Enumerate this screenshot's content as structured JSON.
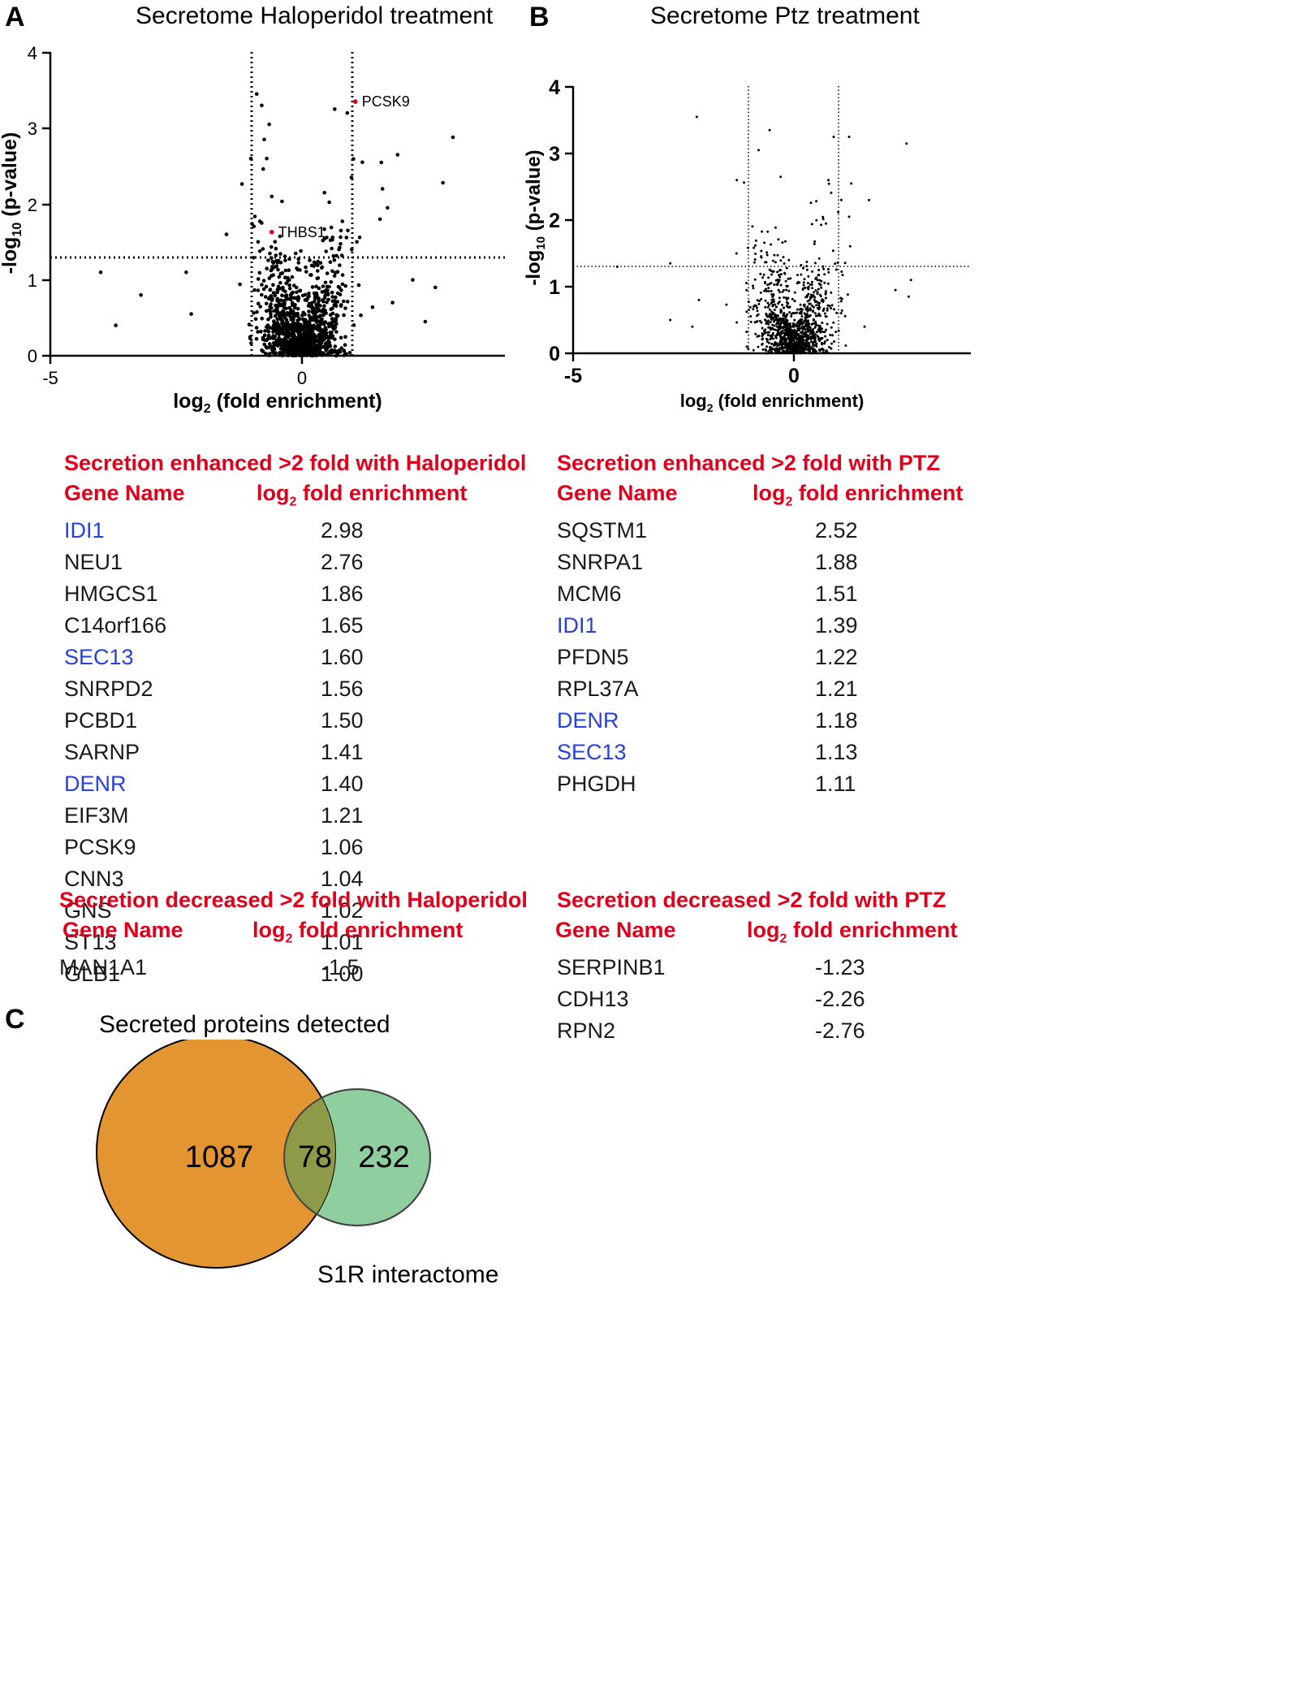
{
  "panels": {
    "a": "A",
    "b": "B",
    "c": "C"
  },
  "plots": [
    {
      "id": "A",
      "title": "Secretome Haloperidol treatment",
      "ylabel_main": "-log",
      "ylabel_sub": "10",
      "ylabel_rest": " (p-value)",
      "xlabel_main": "log",
      "xlabel_sub": "2",
      "xlabel_rest": " (fold enrichment)",
      "xticks": [
        "-5",
        "0"
      ],
      "yticks": [
        "0",
        "1",
        "2",
        "3",
        "4"
      ]
    },
    {
      "id": "B",
      "title": "Secretome Ptz treatment",
      "ylabel_main": "-log",
      "ylabel_sub": "10",
      "ylabel_rest": " (p-value)",
      "xlabel_main": "log",
      "xlabel_sub": "2",
      "xlabel_rest": " (fold enrichment)",
      "xticks": [
        "-5",
        "0"
      ],
      "yticks": [
        "0",
        "1",
        "2",
        "3",
        "4"
      ]
    }
  ],
  "chart_data": [
    {
      "type": "scatter",
      "title": "Secretome Haloperidol treatment",
      "xlabel": "log2 (fold enrichment)",
      "ylabel": "-log10 (p-value)",
      "xlim": [
        -5,
        4
      ],
      "ylim": [
        0,
        4
      ],
      "thresholds": {
        "x": [
          -1,
          1
        ],
        "y": 1.3
      },
      "dot_count_estimate": 1165,
      "points": [
        {
          "x": -4.0,
          "y": 1.1
        },
        {
          "x": -3.7,
          "y": 0.4
        },
        {
          "x": -3.2,
          "y": 0.8
        },
        {
          "x": -2.3,
          "y": 1.1
        },
        {
          "x": -2.2,
          "y": 0.55
        },
        {
          "x": -1.5,
          "y": 1.6
        },
        {
          "x": -0.9,
          "y": 3.45
        },
        {
          "x": -0.8,
          "y": 3.3
        },
        {
          "x": -0.75,
          "y": 2.85
        },
        {
          "x": -0.65,
          "y": 3.05
        },
        {
          "x": -0.7,
          "y": 2.6
        },
        {
          "x": -0.6,
          "y": 2.1
        },
        {
          "x": -0.8,
          "y": 1.75
        },
        {
          "x": 0.65,
          "y": 3.25
        },
        {
          "x": 0.9,
          "y": 3.2
        },
        {
          "x": 1.2,
          "y": 2.55
        },
        {
          "x": 1.9,
          "y": 2.65
        },
        {
          "x": 1.7,
          "y": 1.95
        },
        {
          "x": 2.8,
          "y": 2.28
        },
        {
          "x": 3.0,
          "y": 2.88
        },
        {
          "x": 1.6,
          "y": 2.2
        },
        {
          "x": 1.55,
          "y": 1.8
        },
        {
          "x": 2.2,
          "y": 1.0
        },
        {
          "x": 2.65,
          "y": 0.9
        },
        {
          "x": 2.45,
          "y": 0.45
        },
        {
          "x": 1.8,
          "y": 0.7
        }
      ],
      "labeled_points": [
        {
          "label": "PCSK9",
          "x": 1.06,
          "y": 3.35
        },
        {
          "label": "THBS1",
          "x": -0.6,
          "y": 1.63
        }
      ]
    },
    {
      "type": "scatter",
      "title": "Secretome Ptz treatment",
      "xlabel": "log2 (fold enrichment)",
      "ylabel": "-log10 (p-value)",
      "xlim": [
        -5,
        3.6
      ],
      "ylim": [
        0,
        4
      ],
      "thresholds": {
        "x": [
          -1,
          1
        ],
        "y": 1.3
      },
      "dot_count_estimate": 1165,
      "points": [
        {
          "x": -2.2,
          "y": 3.55
        },
        {
          "x": -0.8,
          "y": 3.05
        },
        {
          "x": -0.55,
          "y": 3.35
        },
        {
          "x": 0.9,
          "y": 3.25
        },
        {
          "x": 1.25,
          "y": 3.25
        },
        {
          "x": 2.55,
          "y": 3.15
        },
        {
          "x": -0.3,
          "y": 2.65
        },
        {
          "x": 1.3,
          "y": 2.55
        },
        {
          "x": 1.25,
          "y": 2.05
        },
        {
          "x": 1.7,
          "y": 2.3
        },
        {
          "x": -4.0,
          "y": 1.3
        },
        {
          "x": -2.8,
          "y": 1.35
        },
        {
          "x": -2.8,
          "y": 0.5
        },
        {
          "x": -2.3,
          "y": 0.4
        },
        {
          "x": -2.15,
          "y": 0.8
        },
        {
          "x": 2.3,
          "y": 0.95
        },
        {
          "x": 2.65,
          "y": 1.1
        },
        {
          "x": 2.6,
          "y": 0.85
        },
        {
          "x": 1.6,
          "y": 0.4
        },
        {
          "x": -1.3,
          "y": 1.5
        }
      ]
    },
    {
      "type": "venn",
      "sets": [
        {
          "name": "Secreted proteins detected",
          "only": 1087,
          "color": "#e29530"
        },
        {
          "name": "S1R interactome",
          "only": 232,
          "color": "#8fcf9f"
        }
      ],
      "intersection": 78,
      "overlap_color": "#8f9a48"
    }
  ],
  "tables": {
    "halo_up": {
      "title": "Secretion enhanced >2 fold with Haloperidol",
      "col_gene": "Gene Name",
      "col_val_main": "log",
      "col_val_sub": "2",
      "col_val_rest": " fold enrichment",
      "rows": [
        {
          "gene": "IDI1",
          "value": "2.98",
          "highlight": true
        },
        {
          "gene": "NEU1",
          "value": "2.76",
          "highlight": false
        },
        {
          "gene": "HMGCS1",
          "value": "1.86",
          "highlight": false
        },
        {
          "gene": "C14orf166",
          "value": "1.65",
          "highlight": false
        },
        {
          "gene": "SEC13",
          "value": "1.60",
          "highlight": true
        },
        {
          "gene": "SNRPD2",
          "value": "1.56",
          "highlight": false
        },
        {
          "gene": "PCBD1",
          "value": "1.50",
          "highlight": false
        },
        {
          "gene": "SARNP",
          "value": "1.41",
          "highlight": false
        },
        {
          "gene": "DENR",
          "value": "1.40",
          "highlight": true
        },
        {
          "gene": "EIF3M",
          "value": "1.21",
          "highlight": false
        },
        {
          "gene": "PCSK9",
          "value": "1.06",
          "highlight": false
        },
        {
          "gene": "CNN3",
          "value": "1.04",
          "highlight": false
        },
        {
          "gene": "GNS",
          "value": "1.02",
          "highlight": false
        },
        {
          "gene": "ST13",
          "value": "1.01",
          "highlight": false
        },
        {
          "gene": "GLB1",
          "value": "1.00",
          "highlight": false
        }
      ]
    },
    "ptz_up": {
      "title": "Secretion enhanced >2 fold with PTZ",
      "col_gene": "Gene Name",
      "col_val_main": "log",
      "col_val_sub": "2",
      "col_val_rest": " fold enrichment",
      "rows": [
        {
          "gene": "SQSTM1",
          "value": "2.52",
          "highlight": false
        },
        {
          "gene": "SNRPA1",
          "value": "1.88",
          "highlight": false
        },
        {
          "gene": "MCM6",
          "value": "1.51",
          "highlight": false
        },
        {
          "gene": "IDI1",
          "value": "1.39",
          "highlight": true
        },
        {
          "gene": "PFDN5",
          "value": "1.22",
          "highlight": false
        },
        {
          "gene": "RPL37A",
          "value": "1.21",
          "highlight": false
        },
        {
          "gene": "DENR",
          "value": "1.18",
          "highlight": true
        },
        {
          "gene": "SEC13",
          "value": "1.13",
          "highlight": true
        },
        {
          "gene": "PHGDH",
          "value": "1.11",
          "highlight": false
        }
      ]
    },
    "halo_down": {
      "title": "Secretion decreased >2 fold with Haloperidol",
      "col_gene": "Gene Name",
      "col_val_main": "log",
      "col_val_sub": "2",
      "col_val_rest": " fold enrichment",
      "rows": [
        {
          "gene": "MAN1A1",
          "value": "-1.5",
          "highlight": false
        }
      ]
    },
    "ptz_down": {
      "title": "Secretion decreased >2 fold with PTZ",
      "col_gene": "Gene Name",
      "col_val_main": "log",
      "col_val_sub": "2",
      "col_val_rest": " fold enrichment",
      "rows": [
        {
          "gene": "SERPINB1",
          "value": "-1.23",
          "highlight": false
        },
        {
          "gene": "CDH13",
          "value": "-2.26",
          "highlight": false
        },
        {
          "gene": "RPN2",
          "value": "-2.76",
          "highlight": false
        }
      ]
    }
  },
  "colors": {
    "table_heading": "#e0001b",
    "gene_highlight": "#2740e0",
    "label_point": "#e0001b"
  }
}
